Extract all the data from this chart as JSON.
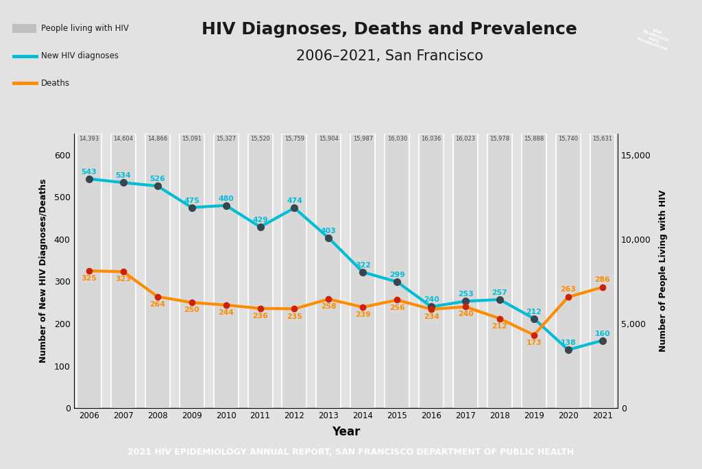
{
  "years": [
    2006,
    2007,
    2008,
    2009,
    2010,
    2011,
    2012,
    2013,
    2014,
    2015,
    2016,
    2017,
    2018,
    2019,
    2020,
    2021
  ],
  "prevalence_labels": [
    "14,393",
    "14,604",
    "14,866",
    "15,091",
    "15,327",
    "15,520",
    "15,759",
    "15,904",
    "15,987",
    "16,030",
    "16,036",
    "16,023",
    "15,978",
    "15,888",
    "15,740",
    "15,631"
  ],
  "diagnoses_data": [
    543,
    534,
    526,
    475,
    480,
    429,
    474,
    403,
    322,
    299,
    240,
    253,
    257,
    212,
    138,
    160
  ],
  "deaths_data": [
    325,
    323,
    264,
    250,
    244,
    236,
    235,
    258,
    239,
    256,
    234,
    240,
    212,
    173,
    263,
    286
  ],
  "title_line1": "HIV Diagnoses, Deaths and Prevalence",
  "title_line2": "2006–2021, San Francisco",
  "xlabel": "Year",
  "ylabel_left": "Number of New HIV Diagnoses/Deaths",
  "ylabel_right": "Number of People Living with HIV",
  "bar_color": "#d8d8d8",
  "bar_edge_color": "#ffffff",
  "line_color_diagnoses": "#00bcd4",
  "line_color_deaths": "#ff8c00",
  "marker_color_diagnoses": "#37474f",
  "marker_color_deaths": "#cc2200",
  "background_color": "#e2e2e2",
  "footer_bg": "#3d3d3d",
  "footer_text": "2021 HIV EPIDEMIOLOGY ANNUAL REPORT, SAN FRANCISCO DEPARTMENT OF PUBLIC HEALTH",
  "footer_text_color": "#ffffff",
  "ylim_left": [
    0,
    650
  ],
  "right_yticks": [
    0,
    5000,
    10000,
    15000
  ],
  "right_yticklabels": [
    "0",
    "5,000",
    "10,000",
    "15,000"
  ],
  "left_yticks": [
    0,
    100,
    200,
    300,
    400,
    500,
    600
  ],
  "diag_label_color": "#00bcd4",
  "death_label_color": "#ff8c00"
}
